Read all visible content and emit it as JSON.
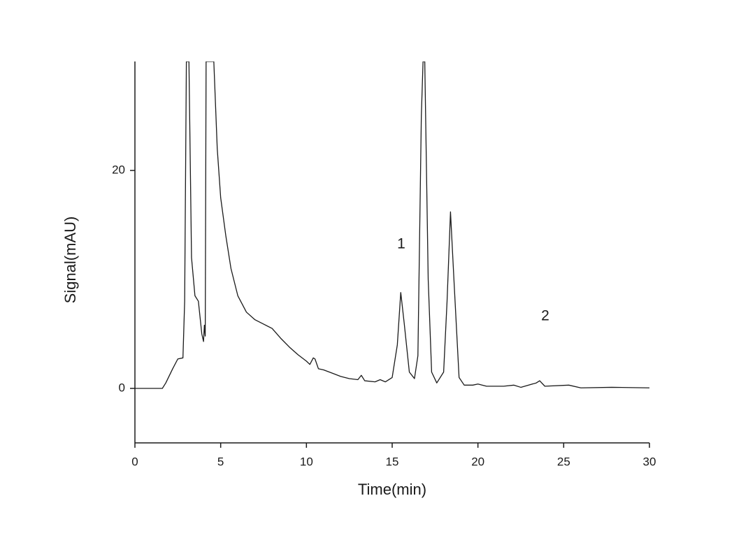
{
  "chart_data": {
    "type": "line",
    "x_label": "Time(min)",
    "y_label": "Signal(mAU)",
    "annotations": [
      "1",
      "2"
    ],
    "xlim": [
      0,
      30
    ],
    "xticks": [
      0,
      5,
      10,
      15,
      20,
      25,
      30
    ],
    "ylim": [
      -5,
      30
    ],
    "yticks": [
      0,
      20
    ],
    "grid": false,
    "series": [
      {
        "color": "#1a1a1a",
        "x": [
          0,
          1.6,
          1.8,
          2.2,
          2.5,
          2.8,
          2.9,
          3.0,
          3.15,
          3.3,
          3.5,
          3.7,
          3.9,
          4.0,
          4.05,
          4.1,
          4.15,
          4.4,
          4.6,
          4.8,
          5.0,
          5.3,
          5.6,
          6.0,
          6.5,
          7,
          7.5,
          8,
          8.5,
          9,
          9.5,
          10,
          10.2,
          10.4,
          10.5,
          10.7,
          11,
          11.5,
          12,
          12.5,
          13,
          13.2,
          13.4,
          14,
          14.3,
          14.6,
          15,
          15.3,
          15.5,
          15.7,
          16,
          16.3,
          16.5,
          16.7,
          16.8,
          16.9,
          17.1,
          17.3,
          17.6,
          18,
          18.2,
          18.4,
          18.6,
          18.9,
          19.2,
          19.7,
          20,
          20.5,
          21.5,
          22.1,
          22.5,
          23.4,
          23.6,
          23.9,
          25.3,
          26,
          27.8,
          30
        ],
        "values": [
          0,
          0,
          0.5,
          1.8,
          2.7,
          2.8,
          8,
          30,
          30,
          12,
          8.5,
          8,
          5,
          4.3,
          5.8,
          4.8,
          30,
          30,
          30,
          22,
          17.5,
          14,
          11,
          8.5,
          7,
          6.3,
          5.9,
          5.5,
          4.6,
          3.8,
          3.1,
          2.5,
          2.2,
          2.8,
          2.7,
          1.8,
          1.7,
          1.4,
          1.1,
          0.9,
          0.8,
          1.2,
          0.7,
          0.6,
          0.8,
          0.6,
          1.0,
          4,
          8.8,
          6,
          1.5,
          0.9,
          3,
          25,
          30,
          30,
          10,
          1.5,
          0.5,
          1.5,
          8,
          16.2,
          10,
          1,
          0.3,
          0.3,
          0.4,
          0.2,
          0.2,
          0.3,
          0.1,
          0.5,
          0.7,
          0.2,
          0.3,
          0.05,
          0.1,
          0.05
        ]
      }
    ]
  }
}
